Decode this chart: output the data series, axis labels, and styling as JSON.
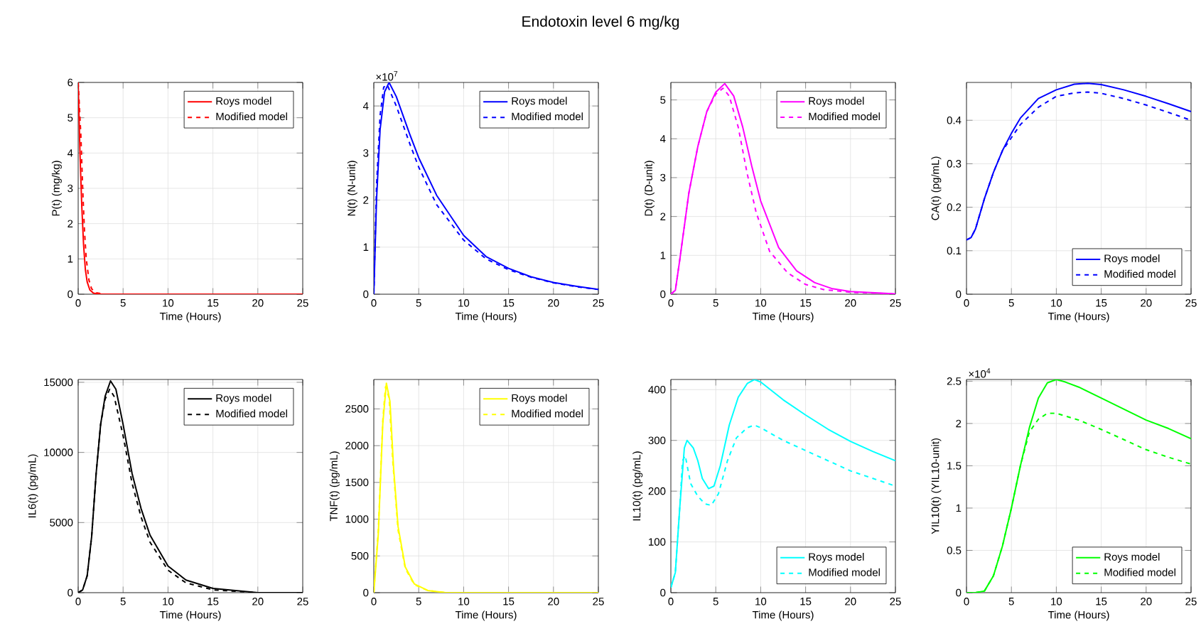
{
  "chart_data": [
    {
      "type": "other",
      "title": "Endotoxin level 6 mg/kg"
    },
    {
      "type": "line",
      "xlabel": "Time (Hours)",
      "ylabel": "P(t) (mg/kg)",
      "xlim": [
        0,
        25
      ],
      "xticks": [
        0,
        5,
        10,
        15,
        20,
        25
      ],
      "ylim": [
        0,
        6
      ],
      "yticks": [
        0,
        1,
        2,
        3,
        4,
        5,
        6
      ],
      "grid": true,
      "legend": "top right",
      "series": [
        {
          "name": "Roys model",
          "color": "#ff0000",
          "line_style": "solid",
          "x": [
            0,
            0.2,
            0.4,
            0.6,
            0.8,
            1,
            1.3,
            1.7,
            2.5,
            25
          ],
          "values": [
            6,
            4,
            2.5,
            1.4,
            0.7,
            0.35,
            0.12,
            0.03,
            0,
            0
          ]
        },
        {
          "name": "Modified model",
          "color": "#ff0000",
          "line_style": "dashed",
          "x": [
            0,
            0.3,
            0.5,
            0.7,
            0.9,
            1.2,
            1.5,
            2,
            3,
            25
          ],
          "values": [
            6,
            4.5,
            3,
            1.8,
            1,
            0.4,
            0.15,
            0.04,
            0,
            0
          ]
        }
      ]
    },
    {
      "type": "line",
      "xlabel": "Time (Hours)",
      "ylabel": "N(t) (N-unit)",
      "annotations": [
        "×10$^{7}$"
      ],
      "xlim": [
        0,
        25
      ],
      "xticks": [
        0,
        5,
        10,
        15,
        20,
        25
      ],
      "ylim": [
        0,
        4.5
      ],
      "yticks": [
        0,
        1,
        2,
        3,
        4
      ],
      "grid": true,
      "legend": "top right",
      "series": [
        {
          "name": "Roys model",
          "color": "#0000ff",
          "line_style": "solid",
          "x": [
            0,
            0.3,
            0.7,
            1.2,
            1.7,
            2.5,
            4,
            5,
            7,
            10,
            12.5,
            15,
            17.5,
            20,
            22.5,
            25
          ],
          "values": [
            0,
            2.0,
            3.5,
            4.3,
            4.5,
            4.2,
            3.4,
            2.9,
            2.1,
            1.25,
            0.8,
            0.55,
            0.37,
            0.25,
            0.17,
            0.1
          ]
        },
        {
          "name": "Modified model",
          "color": "#0000ff",
          "line_style": "dashed",
          "x": [
            0,
            0.3,
            0.7,
            1.1,
            1.5,
            2.5,
            4,
            5,
            7,
            10,
            12.5,
            15,
            17.5,
            20,
            22.5,
            25
          ],
          "values": [
            0,
            2.3,
            3.8,
            4.4,
            4.45,
            4.0,
            3.2,
            2.7,
            1.9,
            1.15,
            0.75,
            0.52,
            0.36,
            0.24,
            0.16,
            0.1
          ]
        }
      ]
    },
    {
      "type": "line",
      "xlabel": "Time (Hours)",
      "ylabel": "D(t) (D-unit)",
      "xlim": [
        0,
        25
      ],
      "xticks": [
        0,
        5,
        10,
        15,
        20,
        25
      ],
      "ylim": [
        0,
        5.45
      ],
      "yticks": [
        0,
        1,
        2,
        3,
        4,
        5
      ],
      "grid": true,
      "legend": "top right",
      "series": [
        {
          "name": "Roys model",
          "color": "#ff00ff",
          "line_style": "solid",
          "x": [
            0,
            0.5,
            1,
            2,
            3,
            4,
            5,
            6,
            7,
            8,
            9,
            10,
            12,
            14,
            16,
            18,
            20,
            25
          ],
          "values": [
            0,
            0.1,
            0.9,
            2.6,
            3.8,
            4.7,
            5.2,
            5.42,
            5.1,
            4.3,
            3.3,
            2.4,
            1.2,
            0.6,
            0.3,
            0.14,
            0.07,
            0.01
          ]
        },
        {
          "name": "Modified model",
          "color": "#ff00ff",
          "line_style": "dashed",
          "x": [
            0,
            0.5,
            1,
            2,
            3,
            4,
            5,
            5.8,
            6.5,
            7.5,
            8.5,
            9.5,
            11,
            13,
            15,
            17,
            20,
            25
          ],
          "values": [
            0,
            0.1,
            0.9,
            2.6,
            3.8,
            4.7,
            5.15,
            5.3,
            5.1,
            4.3,
            3.1,
            2.1,
            1.1,
            0.55,
            0.25,
            0.12,
            0.05,
            0.01
          ]
        }
      ]
    },
    {
      "type": "line",
      "xlabel": "Time (Hours)",
      "ylabel": "CA(t) (pg/mL)",
      "xlim": [
        0,
        25
      ],
      "xticks": [
        0,
        5,
        10,
        15,
        20,
        25
      ],
      "ylim": [
        0,
        0.487
      ],
      "yticks": [
        0,
        0.1,
        0.2,
        0.3,
        0.4
      ],
      "grid": true,
      "legend": "bottom right",
      "series": [
        {
          "name": "Roys model",
          "color": "#0000ff",
          "line_style": "solid",
          "x": [
            0,
            0.5,
            1,
            2,
            3,
            4,
            5,
            6,
            8,
            10,
            12,
            13.5,
            15,
            17.5,
            20,
            22.5,
            25
          ],
          "values": [
            0.125,
            0.13,
            0.15,
            0.22,
            0.28,
            0.33,
            0.37,
            0.405,
            0.45,
            0.47,
            0.483,
            0.485,
            0.482,
            0.47,
            0.455,
            0.438,
            0.42
          ]
        },
        {
          "name": "Modified model",
          "color": "#0000ff",
          "line_style": "dashed",
          "x": [
            0,
            0.5,
            1,
            2,
            3,
            4,
            5,
            6,
            8,
            10,
            12,
            13.5,
            15,
            17.5,
            20,
            22.5,
            25
          ],
          "values": [
            0.125,
            0.13,
            0.15,
            0.22,
            0.28,
            0.33,
            0.36,
            0.39,
            0.43,
            0.455,
            0.463,
            0.465,
            0.462,
            0.45,
            0.435,
            0.418,
            0.4
          ]
        }
      ]
    },
    {
      "type": "line",
      "xlabel": "Time (Hours)",
      "ylabel": "IL6(t) (pg/mL)",
      "xlim": [
        0,
        25
      ],
      "xticks": [
        0,
        5,
        10,
        15,
        20,
        25
      ],
      "ylim": [
        0,
        15200
      ],
      "yticks": [
        0,
        5000,
        10000,
        15000
      ],
      "grid": true,
      "legend": "top right",
      "series": [
        {
          "name": "Roys model",
          "color": "#000000",
          "line_style": "solid",
          "x": [
            0,
            0.5,
            1,
            1.5,
            2,
            2.5,
            3,
            3.6,
            4.2,
            5,
            6,
            7,
            8,
            10,
            12,
            15,
            20,
            25
          ],
          "values": [
            0,
            200,
            1200,
            4000,
            8500,
            12000,
            14000,
            15100,
            14500,
            12000,
            8500,
            6000,
            4100,
            1900,
            900,
            300,
            0,
            0
          ]
        },
        {
          "name": "Modified model",
          "color": "#000000",
          "line_style": "dashed",
          "x": [
            0,
            0.5,
            1,
            1.5,
            2,
            2.5,
            3,
            3.5,
            4,
            5,
            6,
            7,
            8,
            10,
            12,
            15,
            20,
            25
          ],
          "values": [
            0,
            200,
            1200,
            4000,
            8500,
            12000,
            13800,
            14500,
            14000,
            11200,
            7800,
            5400,
            3600,
            1600,
            700,
            200,
            0,
            0
          ]
        }
      ]
    },
    {
      "type": "line",
      "xlabel": "Time (Hours)",
      "ylabel": "TNF(t) (pg/mL)",
      "xlim": [
        0,
        25
      ],
      "xticks": [
        0,
        5,
        10,
        15,
        20,
        25
      ],
      "ylim": [
        0,
        2900
      ],
      "yticks": [
        0,
        500,
        1000,
        1500,
        2000,
        2500
      ],
      "grid": true,
      "legend": "top right",
      "series": [
        {
          "name": "Roys model",
          "color": "#ffff00",
          "line_style": "solid",
          "x": [
            0,
            0.5,
            1,
            1.4,
            1.8,
            2.2,
            2.7,
            3.5,
            4.5,
            6,
            8,
            25
          ],
          "values": [
            0,
            800,
            2300,
            2850,
            2600,
            1700,
            900,
            350,
            120,
            30,
            0,
            0
          ]
        },
        {
          "name": "Modified model",
          "color": "#ffff00",
          "line_style": "dashed",
          "x": [
            0,
            0.5,
            1,
            1.3,
            1.7,
            2.1,
            2.7,
            3.5,
            4.5,
            6,
            8,
            25
          ],
          "values": [
            0,
            850,
            2350,
            2800,
            2650,
            1800,
            850,
            330,
            110,
            30,
            0,
            0
          ]
        }
      ]
    },
    {
      "type": "line",
      "xlabel": "Time (Hours)",
      "ylabel": "IL10(t) (pg/mL)",
      "xlim": [
        0,
        25
      ],
      "xticks": [
        0,
        5,
        10,
        15,
        20,
        25
      ],
      "ylim": [
        0,
        420
      ],
      "yticks": [
        0,
        100,
        200,
        300,
        400
      ],
      "grid": true,
      "legend": "bottom right",
      "series": [
        {
          "name": "Roys model",
          "color": "#00ffff",
          "line_style": "solid",
          "x": [
            0,
            0.5,
            1,
            1.5,
            1.8,
            2.5,
            3,
            3.5,
            4.2,
            4.8,
            5.5,
            6.5,
            7.5,
            8.5,
            9.3,
            10,
            12.5,
            15,
            17.5,
            20,
            22.5,
            25
          ],
          "values": [
            10,
            40,
            170,
            285,
            300,
            285,
            260,
            225,
            205,
            210,
            250,
            330,
            385,
            412,
            420,
            415,
            380,
            350,
            322,
            298,
            278,
            260
          ]
        },
        {
          "name": "Modified model",
          "color": "#00ffff",
          "line_style": "dashed",
          "x": [
            0,
            0.5,
            1,
            1.3,
            1.6,
            2.2,
            3,
            3.8,
            4.5,
            5.3,
            6.3,
            7.3,
            8.5,
            9.3,
            10,
            12.5,
            15,
            17.5,
            20,
            22.5,
            25
          ],
          "values": [
            10,
            40,
            170,
            260,
            270,
            215,
            190,
            175,
            172,
            195,
            260,
            305,
            325,
            330,
            325,
            300,
            280,
            260,
            240,
            225,
            210
          ]
        }
      ]
    },
    {
      "type": "line",
      "xlabel": "Time (Hours)",
      "ylabel": "YIL10(t) (YIL10-unit)",
      "annotations": [
        "×10$^{4}$"
      ],
      "xlim": [
        0,
        25
      ],
      "xticks": [
        0,
        5,
        10,
        15,
        20,
        25
      ],
      "ylim": [
        0,
        2.52
      ],
      "yticks": [
        0,
        0.5,
        1,
        1.5,
        2,
        2.5
      ],
      "grid": true,
      "legend": "bottom right",
      "series": [
        {
          "name": "Roys model",
          "color": "#00ff00",
          "line_style": "solid",
          "x": [
            0,
            1,
            2,
            3,
            4,
            5,
            6,
            7,
            8,
            9,
            10,
            11,
            12.5,
            15,
            17.5,
            20,
            22.5,
            25
          ],
          "values": [
            0,
            0,
            0.02,
            0.2,
            0.55,
            1.0,
            1.5,
            1.95,
            2.3,
            2.48,
            2.52,
            2.49,
            2.43,
            2.3,
            2.17,
            2.04,
            1.94,
            1.82
          ]
        },
        {
          "name": "Modified model",
          "color": "#00ff00",
          "line_style": "dashed",
          "x": [
            0,
            1,
            2,
            3,
            4,
            5,
            6,
            6.5,
            7,
            8,
            9,
            10,
            12.5,
            15,
            17.5,
            20,
            22.5,
            25
          ],
          "values": [
            0,
            0,
            0.02,
            0.2,
            0.55,
            1.0,
            1.5,
            1.7,
            1.9,
            2.05,
            2.12,
            2.12,
            2.04,
            1.93,
            1.81,
            1.69,
            1.6,
            1.52
          ]
        }
      ]
    }
  ]
}
